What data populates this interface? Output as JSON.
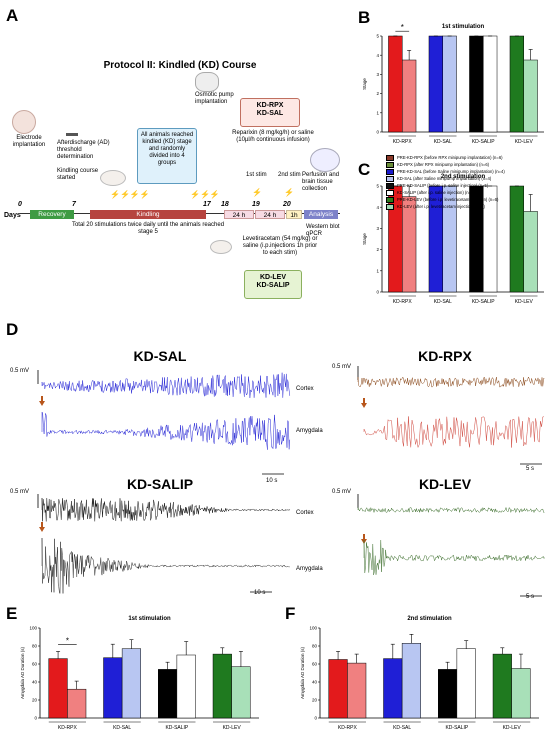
{
  "panels": {
    "A": "A",
    "B": "B",
    "C": "C",
    "D": "D",
    "E": "E",
    "F": "F"
  },
  "protocol": {
    "title": "Protocol II: Kindled (KD) Course",
    "electrode": "Electrode implantation",
    "ad_threshold": "Afterdischarge (AD) threshold determination",
    "kindling_started": "Kindling course started",
    "pump": "Osmotic pump implantation",
    "groups_rpx": "KD-RPX\nKD-SAL",
    "reached": "All animals reached kindled (KD) stage and randomly divided into 4 groups",
    "reparixin": "Reparixin (8 mg/kg/h) or saline (10µl/h continuous infusion)",
    "stim1": "1st stim",
    "stim2": "2nd stim",
    "perfusion": "Perfusion and brain tissue collection",
    "days_label": "Days",
    "days": [
      "0",
      "7",
      "17",
      "18",
      "19",
      "20"
    ],
    "segments": [
      "Recovery",
      "Kindling",
      "24 h",
      "24 h",
      "1h",
      "Analysis"
    ],
    "total": "Total 20 stimulations twice daily until the animals reached stage 5",
    "western": "Western blot qPCR",
    "leve": "Levetiracetam (54 mg/kg) or saline (i.p.injections 1h prior to each stim)",
    "groups_lev": "KD-LEV\nKD-SALIP"
  },
  "chart_data": [
    {
      "id": "B",
      "type": "bar",
      "title": "1st stimulation",
      "ylabel": "Stage",
      "ylim": [
        0,
        5
      ],
      "categories": [
        "KD-RPX",
        "KD-SAL",
        "KD-SALIP",
        "KD-LEV"
      ],
      "series": [
        {
          "name": "PRE",
          "values": [
            5,
            5,
            5,
            5
          ]
        },
        {
          "name": "POST",
          "values": [
            3.75,
            5,
            5,
            3.75
          ]
        }
      ],
      "yticks": [
        "0",
        "1",
        "2",
        "3",
        "4",
        "5"
      ],
      "annotation": "*"
    },
    {
      "id": "C",
      "type": "bar",
      "title": "2nd stimulation",
      "ylabel": "Stage",
      "ylim": [
        0,
        5
      ],
      "categories": [
        "KD-RPX",
        "KD-SAL",
        "KD-SALIP",
        "KD-LEV"
      ],
      "series": [
        {
          "name": "PRE",
          "values": [
            5,
            5,
            5,
            5
          ]
        },
        {
          "name": "POST",
          "values": [
            4.5,
            5,
            5,
            3.8
          ]
        }
      ],
      "yticks": [
        "0",
        "1",
        "2",
        "3",
        "4",
        "5"
      ]
    },
    {
      "id": "E",
      "type": "bar",
      "title": "1st stimulation",
      "ylabel": "Amygdala AD Duration (s)",
      "ylim": [
        0,
        100
      ],
      "categories": [
        "KD-RPX",
        "KD-SAL",
        "KD-SALIP",
        "KD-LEV"
      ],
      "series": [
        {
          "name": "PRE",
          "values": [
            66,
            67,
            54,
            71
          ]
        },
        {
          "name": "POST",
          "values": [
            32,
            77,
            70,
            57
          ]
        }
      ],
      "yticks": [
        "0",
        "20",
        "40",
        "60",
        "80",
        "100"
      ],
      "annotation": "*"
    },
    {
      "id": "F",
      "type": "bar",
      "title": "2nd stimulation",
      "ylabel": "Amygdala AD Duration (s)",
      "ylim": [
        0,
        100
      ],
      "categories": [
        "KD-RPX",
        "KD-SAL",
        "KD-SALIP",
        "KD-LEV"
      ],
      "series": [
        {
          "name": "PRE",
          "values": [
            65,
            66,
            54,
            71
          ]
        },
        {
          "name": "POST",
          "values": [
            61,
            83,
            77,
            55
          ]
        }
      ],
      "yticks": [
        "0",
        "20",
        "40",
        "60",
        "80",
        "100"
      ]
    }
  ],
  "legend": [
    {
      "label": "PRE-KD-RPX (before RPX minipump implantation) (n=6)",
      "color": "#8b3a2a"
    },
    {
      "label": "KD-RPX (after RPX minipump implantation) (n=6)",
      "color": "#6a8e3a"
    },
    {
      "label": "PRE-KD-SAL (before Saline minipump implantation) (n=4)",
      "color": "#1a1acc"
    },
    {
      "label": "KD-SAL (after Saline minipump implantation) (n=4)",
      "color": "#b9c4f0"
    },
    {
      "label": "PRE-KD-SALIP (before i.p. saline injection) (n=5)",
      "color": "#111111"
    },
    {
      "label": "KD-SALIP (after i.p. saline injection) (n=5)",
      "color": "#ffffff"
    },
    {
      "label": "PRE-KD-LEV (before i.p. levetiracetam injection) (n=6)",
      "color": "#2e7d1e"
    },
    {
      "label": "KD-LEV (after i.p. levetiracetam injection) (n=6)",
      "color": "#9fd8b0"
    }
  ],
  "colors": {
    "RPX_pre": "#e31a1c",
    "RPX_post": "#f08080",
    "SAL_pre": "#1f1fd6",
    "SAL_post": "#b8c6f2",
    "SALIP_pre": "#000000",
    "SALIP_post": "#ffffff",
    "LEV_pre": "#1f7a1f",
    "LEV_post": "#a8e0b8"
  },
  "eeg": {
    "sal": "KD-SAL",
    "rpx": "KD-RPX",
    "salip": "KD-SALIP",
    "lev": "KD-LEV",
    "scale": "0.5 mV",
    "cortex": "Cortex",
    "amygdala": "Amygdala",
    "t10": "10 s",
    "t5": "5 s"
  }
}
